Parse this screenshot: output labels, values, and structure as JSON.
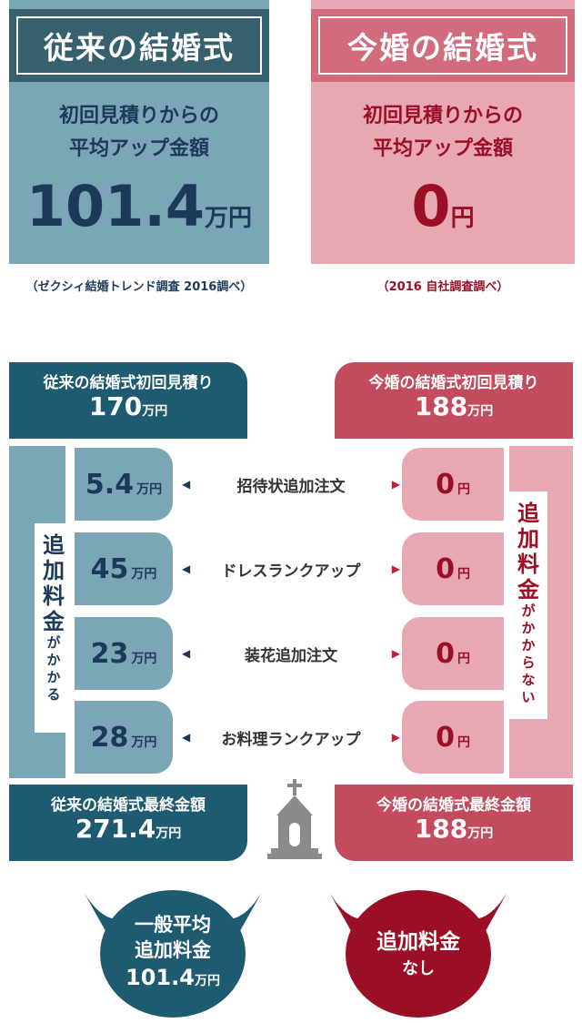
{
  "top": {
    "left": {
      "title": "従来の結婚式",
      "sub_line1": "初回見積りからの",
      "sub_line2": "平均アップ金額",
      "amount": "101.4",
      "unit": "万円",
      "note": "（ゼクシィ結婚トレンド調査 2016調べ）"
    },
    "right": {
      "title": "今婚の結婚式",
      "sub_line1": "初回見積りからの",
      "sub_line2": "平均アップ金額",
      "amount": "0",
      "unit": "円",
      "note": "（2016 自社調査調べ）"
    }
  },
  "compare": {
    "left_initial": {
      "label": "従来の結婚式初回見積り",
      "value": "170",
      "unit": "万円"
    },
    "right_initial": {
      "label": "今婚の結婚式初回見積り",
      "value": "188",
      "unit": "万円"
    },
    "left_vertical_big": [
      "追",
      "加",
      "料",
      "金"
    ],
    "left_vertical_small": [
      "が",
      "か",
      "か",
      "る"
    ],
    "right_vertical_big": [
      "追",
      "加",
      "料",
      "金"
    ],
    "right_vertical_small": [
      "が",
      "か",
      "か",
      "ら",
      "な",
      "い"
    ],
    "rows": [
      {
        "left_value": "5.4",
        "left_unit": "万円",
        "label": "招待状追加注文",
        "right_value": "0",
        "right_unit": "円"
      },
      {
        "left_value": "45",
        "left_unit": "万円",
        "label": "ドレスランクアップ",
        "right_value": "0",
        "right_unit": "円"
      },
      {
        "left_value": "23",
        "left_unit": "万円",
        "label": "装花追加注文",
        "right_value": "0",
        "right_unit": "円"
      },
      {
        "left_value": "28",
        "left_unit": "万円",
        "label": "お料理ランクアップ",
        "right_value": "0",
        "right_unit": "円"
      }
    ],
    "left_final": {
      "label": "従来の結婚式最終金額",
      "value": "271.4",
      "unit": "万円"
    },
    "right_final": {
      "label": "今婚の結婚式最終金額",
      "value": "188",
      "unit": "万円"
    }
  },
  "circles": {
    "left": {
      "line1": "一般平均",
      "line2": "追加料金",
      "line3": "101.4",
      "unit": "万円"
    },
    "right": {
      "line1": "追加料金",
      "line2": "なし"
    }
  },
  "icons": {
    "chapel": "chapel-icon",
    "arrow_left": "arrow-left-icon",
    "arrow_right": "arrow-right-icon"
  },
  "colors": {
    "navy": "#1e5a70",
    "teal_light": "#7ba6b5",
    "crimson": "#9a0f26",
    "pink": "#e8a8b3",
    "rose": "#c24b5e"
  }
}
